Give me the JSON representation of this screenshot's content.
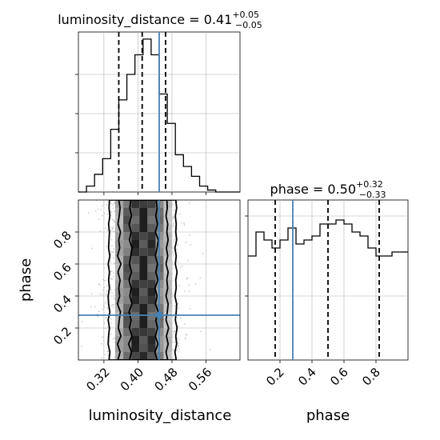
{
  "chart_data": [
    {
      "type": "histogram",
      "panel": "luminosity_distance marginal",
      "title": {
        "param": "luminosity_distance",
        "median": "0.41",
        "plus": "+0.05",
        "minus": "−0.05"
      },
      "x_range": [
        0.26,
        0.64
      ],
      "bin_edges": [
        0.26,
        0.279,
        0.298,
        0.317,
        0.336,
        0.355,
        0.374,
        0.393,
        0.412,
        0.431,
        0.45,
        0.469,
        0.488,
        0.507,
        0.526,
        0.545,
        0.564,
        0.583,
        0.602,
        0.621,
        0.64
      ],
      "counts": [
        0,
        3,
        9,
        17,
        32,
        47,
        60,
        70,
        78,
        70,
        50,
        35,
        19,
        13,
        8,
        3,
        1,
        0,
        0,
        0
      ],
      "y_max": 80,
      "quantiles": [
        0.355,
        0.41,
        0.465
      ],
      "truth": 0.45,
      "grid": true
    },
    {
      "type": "histogram",
      "panel": "phase marginal",
      "title": {
        "param": "phase",
        "median": "0.50",
        "plus": "+0.32",
        "minus": "−0.33"
      },
      "x_range": [
        0.0,
        1.0
      ],
      "x_ticks": [
        "0.2",
        "0.4",
        "0.6",
        "0.8"
      ],
      "xlabel": "phase",
      "bin_edges": [
        0.0,
        0.05,
        0.1,
        0.15,
        0.2,
        0.25,
        0.3,
        0.35,
        0.4,
        0.45,
        0.5,
        0.55,
        0.6,
        0.65,
        0.7,
        0.75,
        0.8,
        0.85,
        0.9,
        0.95,
        1.0
      ],
      "counts": [
        26,
        32,
        30,
        28,
        30,
        33,
        29,
        30,
        31,
        34,
        34,
        35,
        34,
        32,
        31,
        28,
        26,
        26,
        27,
        27
      ],
      "y_max": 40,
      "quantiles": [
        0.17,
        0.5,
        0.82
      ],
      "truth": 0.28,
      "grid": true
    },
    {
      "type": "scatter+contour",
      "panel": "joint luminosity_distance vs phase",
      "x_range": [
        0.26,
        0.64
      ],
      "y_range": [
        0.0,
        1.0
      ],
      "x_ticks": [
        "0.32",
        "0.40",
        "0.48",
        "0.56"
      ],
      "y_ticks": [
        "0.2",
        "0.4",
        "0.6",
        "0.8"
      ],
      "xlabel": "luminosity_distance",
      "ylabel": "phase",
      "truth": [
        0.45,
        0.28
      ],
      "density_columns": [
        0.356,
        0.375,
        0.394,
        0.413,
        0.432,
        0.451,
        0.47
      ],
      "density_rows": [
        0.0,
        0.05,
        0.1,
        0.15,
        0.2,
        0.25,
        0.3,
        0.35,
        0.4,
        0.45,
        0.5,
        0.55,
        0.6,
        0.65,
        0.7,
        0.75,
        0.8,
        0.85,
        0.9,
        0.95
      ],
      "contours": [
        {
          "level": "outer",
          "left": [
            0.332,
            0.334,
            0.33,
            0.331,
            0.333,
            0.33,
            0.334,
            0.331,
            0.33,
            0.333,
            0.331,
            0.333,
            0.33,
            0.334,
            0.331,
            0.332,
            0.333,
            0.331,
            0.334,
            0.332,
            0.333
          ],
          "right": [
            0.49,
            0.487,
            0.491,
            0.489,
            0.492,
            0.488,
            0.49,
            0.491,
            0.487,
            0.49,
            0.489,
            0.492,
            0.488,
            0.49,
            0.487,
            0.491,
            0.489,
            0.49,
            0.488,
            0.491,
            0.489
          ]
        },
        {
          "level": "middle",
          "left": [
            0.353,
            0.358,
            0.352,
            0.36,
            0.354,
            0.356,
            0.359,
            0.352,
            0.357,
            0.355,
            0.358,
            0.353,
            0.36,
            0.352,
            0.357,
            0.355,
            0.359,
            0.353,
            0.356,
            0.358,
            0.355
          ],
          "right": [
            0.47,
            0.466,
            0.471,
            0.467,
            0.472,
            0.466,
            0.469,
            0.471,
            0.466,
            0.47,
            0.468,
            0.471,
            0.466,
            0.47,
            0.467,
            0.471,
            0.468,
            0.47,
            0.466,
            0.469,
            0.468
          ]
        },
        {
          "level": "inner",
          "left": [
            0.38,
            0.385,
            0.378,
            0.386,
            0.38,
            0.384,
            0.379,
            0.386,
            0.381,
            0.384,
            0.379,
            0.385,
            0.38,
            0.383,
            0.386,
            0.38,
            0.384,
            0.379,
            0.385,
            0.381,
            0.383
          ],
          "right": [
            0.445,
            0.44,
            0.447,
            0.441,
            0.446,
            0.442,
            0.448,
            0.441,
            0.445,
            0.44,
            0.447,
            0.442,
            0.446,
            0.441,
            0.445,
            0.448,
            0.441,
            0.446,
            0.442,
            0.445,
            0.443
          ]
        }
      ]
    }
  ],
  "colors": {
    "truth": "#4682b4",
    "line": "#000000",
    "grid": "#b0b0b0",
    "points": "#b8b8b8"
  }
}
